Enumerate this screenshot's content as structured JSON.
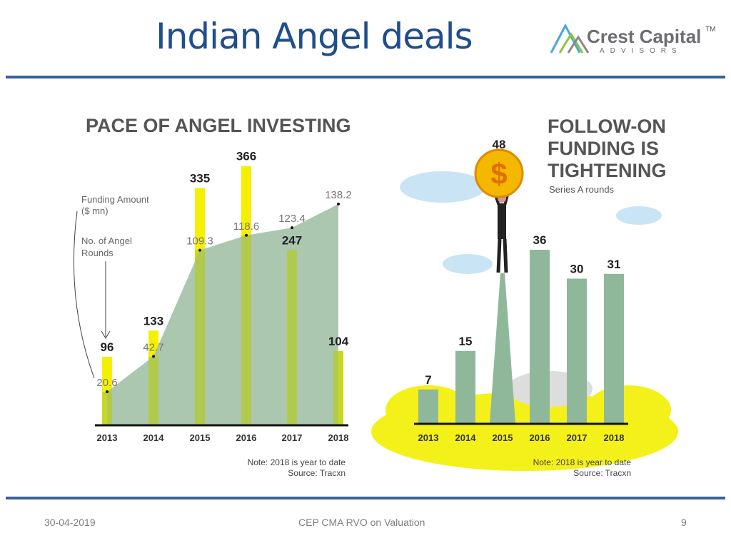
{
  "slide": {
    "title": "Indian Angel deals",
    "logo": {
      "name": "Crest Capital",
      "sub": "ADVISORS",
      "tm": "TM"
    },
    "footer": {
      "date": "30-04-2019",
      "center": "CEP CMA RVO on Valuation",
      "page": "9"
    }
  },
  "colors": {
    "title": "#1f4e8c",
    "rule": "#3a5f9a",
    "yellow": "#f5f000",
    "green": "#9fbfa5",
    "olive": "#b5cc2e"
  },
  "chart_data": [
    {
      "type": "bar",
      "title": "PACE OF ANGEL INVESTING",
      "categories": [
        "2013",
        "2014",
        "2015",
        "2016",
        "2017",
        "2018"
      ],
      "series": [
        {
          "name": "No. of Angel Rounds",
          "type": "bar",
          "values": [
            96,
            133,
            335,
            366,
            247,
            104
          ],
          "labels": [
            "96",
            "133",
            "335",
            "366",
            "247",
            "104"
          ]
        },
        {
          "name": "Funding Amount ($ mn)",
          "type": "area",
          "values": [
            20.6,
            42.7,
            109.3,
            118.6,
            123.4,
            138.2
          ],
          "labels": [
            "20.6",
            "42.7",
            "109.3",
            "118.6",
            "123.4",
            "138.2"
          ]
        }
      ],
      "legend": {
        "funding": "Funding Amount",
        "funding2": "($ mn)",
        "rounds": "No. of Angel",
        "rounds2": "Rounds"
      },
      "note": "Note: 2018 is year to date",
      "source": "Source: Tracxn"
    },
    {
      "type": "bar",
      "title": [
        "FOLLOW-ON",
        "FUNDING IS",
        "TIGHTENING"
      ],
      "subtitle": "Series A rounds",
      "categories": [
        "2013",
        "2014",
        "2015",
        "2016",
        "2017",
        "2018"
      ],
      "values": [
        7,
        15,
        48,
        36,
        30,
        31
      ],
      "labels": [
        "7",
        "15",
        "48",
        "36",
        "30",
        "31"
      ],
      "coin_symbol": "$",
      "note": "Note: 2018 is year to date",
      "source": "Source: Tracxn"
    }
  ]
}
